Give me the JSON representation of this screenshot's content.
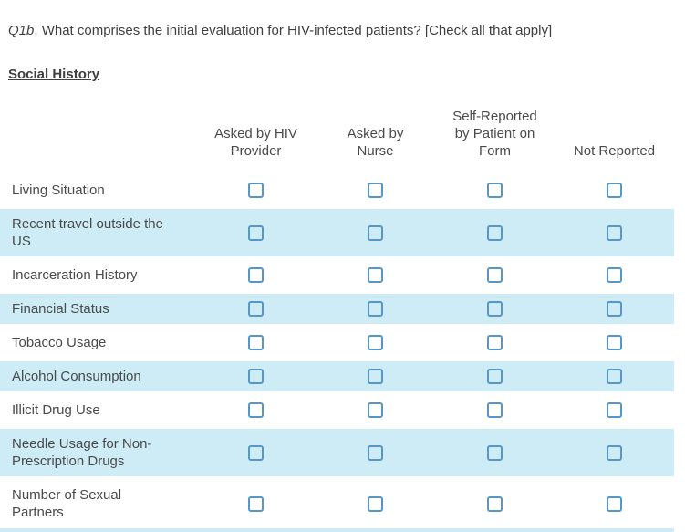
{
  "question": {
    "prefix": "Q1b",
    "text": ". What comprises the initial evaluation for HIV-infected patients? [Check all that apply]"
  },
  "section": {
    "title": "Social History"
  },
  "matrix": {
    "columns": [
      {
        "id": "asked-by-hiv-provider",
        "label": "Asked by HIV Provider",
        "lines": [
          "Asked by HIV",
          "Provider"
        ]
      },
      {
        "id": "asked-by-nurse",
        "label": "Asked by Nurse",
        "lines": [
          "Asked by",
          "Nurse"
        ]
      },
      {
        "id": "self-reported-by-patient-on-form",
        "label": "Self-Reported by Patient on Form",
        "lines": [
          "Self-Reported",
          "by Patient on",
          "Form"
        ]
      },
      {
        "id": "not-reported",
        "label": "Not Reported",
        "lines": [
          "Not Reported"
        ]
      }
    ],
    "rows": [
      {
        "label": "Living Situation",
        "checked": [
          false,
          false,
          false,
          false
        ]
      },
      {
        "label": "Recent travel outside the US",
        "checked": [
          false,
          false,
          false,
          false
        ]
      },
      {
        "label": "Incarceration History",
        "checked": [
          false,
          false,
          false,
          false
        ]
      },
      {
        "label": "Financial Status",
        "checked": [
          false,
          false,
          false,
          false
        ]
      },
      {
        "label": "Tobacco Usage",
        "checked": [
          false,
          false,
          false,
          false
        ]
      },
      {
        "label": "Alcohol Consumption",
        "checked": [
          false,
          false,
          false,
          false
        ]
      },
      {
        "label": "Illicit Drug Use",
        "checked": [
          false,
          false,
          false,
          false
        ]
      },
      {
        "label": "Needle Usage for Non-Prescription Drugs",
        "checked": [
          false,
          false,
          false,
          false
        ]
      },
      {
        "label": "Number of Sexual Partners",
        "checked": [
          false,
          false,
          false,
          false
        ]
      }
    ]
  },
  "colors": {
    "alt_row_background": "#cdecf6",
    "checkbox_border": "#5797c7",
    "text": "#4a4a4a",
    "heading_text": "#3f3f3f"
  }
}
